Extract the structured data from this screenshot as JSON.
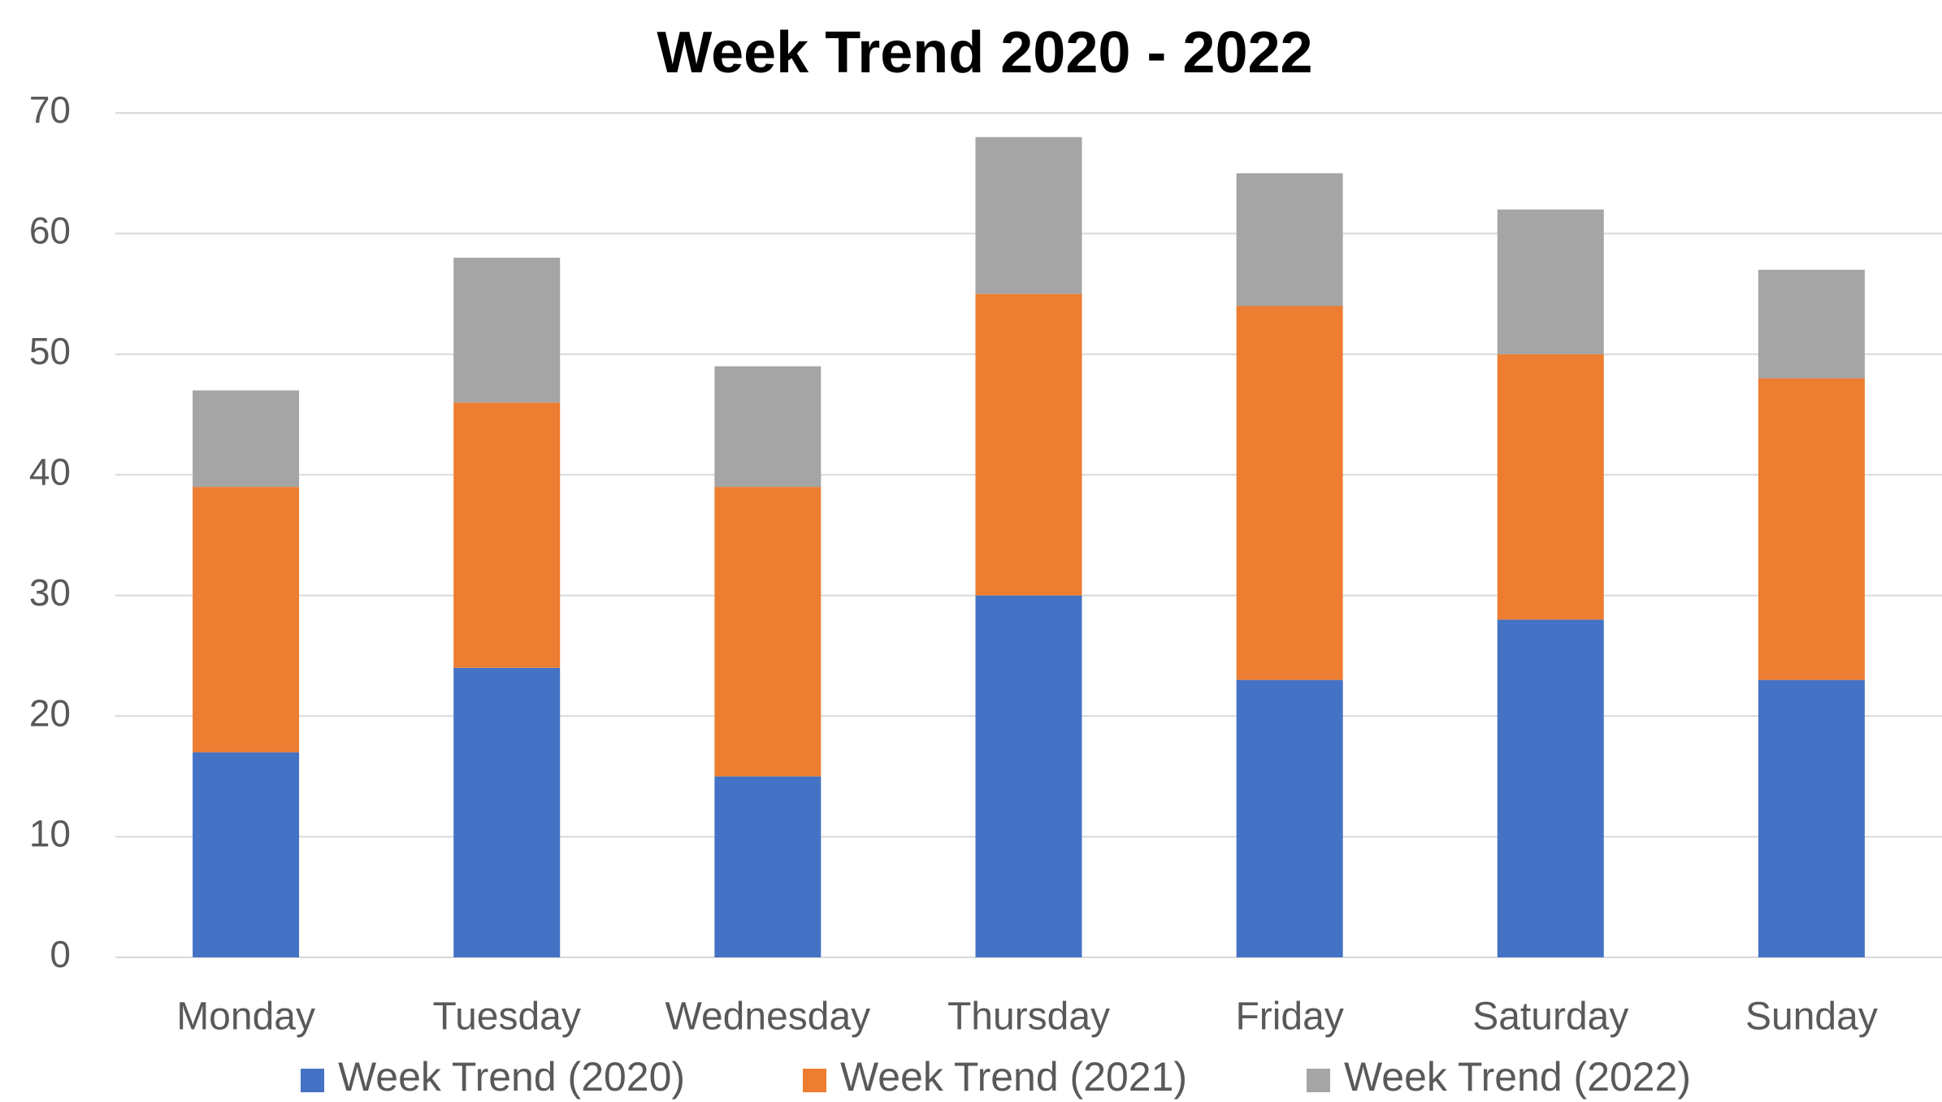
{
  "chart_data": {
    "type": "stacked_bar",
    "title": "Week Trend 2020 - 2022",
    "categories": [
      "Monday",
      "Tuesday",
      "Wednesday",
      "Thursday",
      "Friday",
      "Saturday",
      "Sunday"
    ],
    "series": [
      {
        "name": "Week Trend (2020)",
        "color": "#4472c4",
        "values": [
          17,
          24,
          15,
          30,
          23,
          28,
          23
        ]
      },
      {
        "name": "Week Trend (2021)",
        "color": "#ed7d31",
        "values": [
          22,
          22,
          24,
          25,
          31,
          22,
          25
        ]
      },
      {
        "name": "Week Trend (2022)",
        "color": "#a5a5a5",
        "values": [
          8,
          12,
          10,
          13,
          11,
          12,
          9
        ]
      }
    ],
    "ylim": [
      0,
      70
    ],
    "yticks": [
      0,
      10,
      20,
      30,
      40,
      50,
      60,
      70
    ],
    "grid": true,
    "legend": "bottom"
  }
}
